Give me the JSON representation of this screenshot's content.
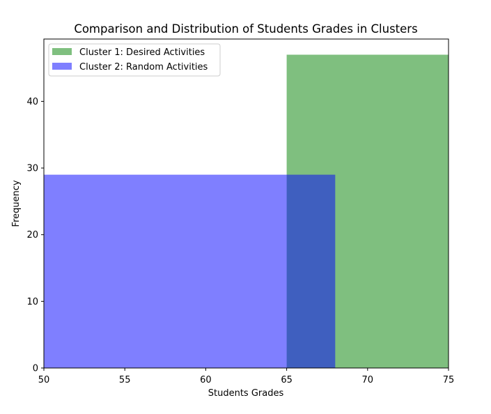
{
  "chart_data": {
    "type": "bar",
    "title": "Comparison and Distribution of Students Grades in Clusters",
    "xlabel": "Students Grades",
    "ylabel": "Frequency",
    "xlim": [
      50,
      75
    ],
    "ylim": [
      0,
      49.35
    ],
    "x_ticks": [
      50,
      55,
      60,
      65,
      70,
      75
    ],
    "y_ticks": [
      0,
      10,
      20,
      30,
      40
    ],
    "grid": false,
    "legend_position": "top-left",
    "series": [
      {
        "name": "Cluster 1: Desired Activities",
        "color": "#008000",
        "opacity": 0.5,
        "bins": [
          {
            "x0": 65,
            "x1": 75,
            "value": 47
          }
        ]
      },
      {
        "name": "Cluster 2: Random Activities",
        "color": "#0000ff",
        "opacity": 0.5,
        "bins": [
          {
            "x0": 50,
            "x1": 68,
            "value": 29
          }
        ]
      }
    ]
  }
}
